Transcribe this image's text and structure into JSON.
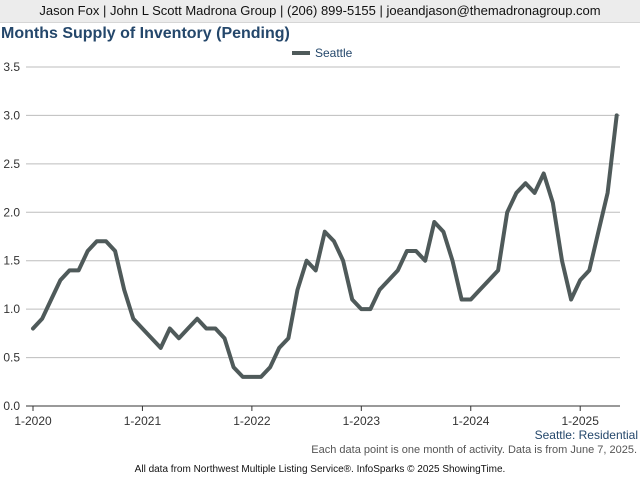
{
  "header": {
    "contact": "Jason Fox | John L Scott Madrona Group | (206) 899-5155 | joeandjason@themadronagroup.com"
  },
  "colors": {
    "series": "#4f5a5a",
    "title": "#24476b",
    "grid": "#bdbdbd",
    "header_bg": "#ececec"
  },
  "chart_data": {
    "type": "line",
    "title": "Months Supply of Inventory (Pending)",
    "subtitle_label": "Seattle: Residential",
    "xlabel": "",
    "ylabel": "",
    "ylim": [
      0,
      3.5
    ],
    "yticks": [
      "0.0",
      "0.5",
      "1.0",
      "1.5",
      "2.0",
      "2.5",
      "3.0",
      "3.5"
    ],
    "xticks": [
      "1-2020",
      "1-2021",
      "1-2022",
      "1-2023",
      "1-2024",
      "1-2025"
    ],
    "grid": true,
    "legend": "top-center",
    "series": [
      {
        "name": "Seattle",
        "start": "1-2020",
        "values": [
          0.8,
          0.9,
          1.1,
          1.3,
          1.4,
          1.4,
          1.6,
          1.7,
          1.7,
          1.6,
          1.2,
          0.9,
          0.8,
          0.7,
          0.6,
          0.8,
          0.7,
          0.8,
          0.9,
          0.8,
          0.8,
          0.7,
          0.4,
          0.3,
          0.3,
          0.3,
          0.4,
          0.6,
          0.7,
          1.2,
          1.5,
          1.4,
          1.8,
          1.7,
          1.5,
          1.1,
          1.0,
          1.0,
          1.2,
          1.3,
          1.4,
          1.6,
          1.6,
          1.5,
          1.9,
          1.8,
          1.5,
          1.1,
          1.1,
          1.2,
          1.3,
          1.4,
          2.0,
          2.2,
          2.3,
          2.2,
          2.4,
          2.1,
          1.5,
          1.1,
          1.3,
          1.4,
          1.8,
          2.2,
          3.0
        ]
      }
    ]
  },
  "footer": {
    "note": "Each data point is one month of activity. Data is from June 7, 2025.",
    "source": "All data from Northwest Multiple Listing Service®. InfoSparks © 2025 ShowingTime."
  }
}
